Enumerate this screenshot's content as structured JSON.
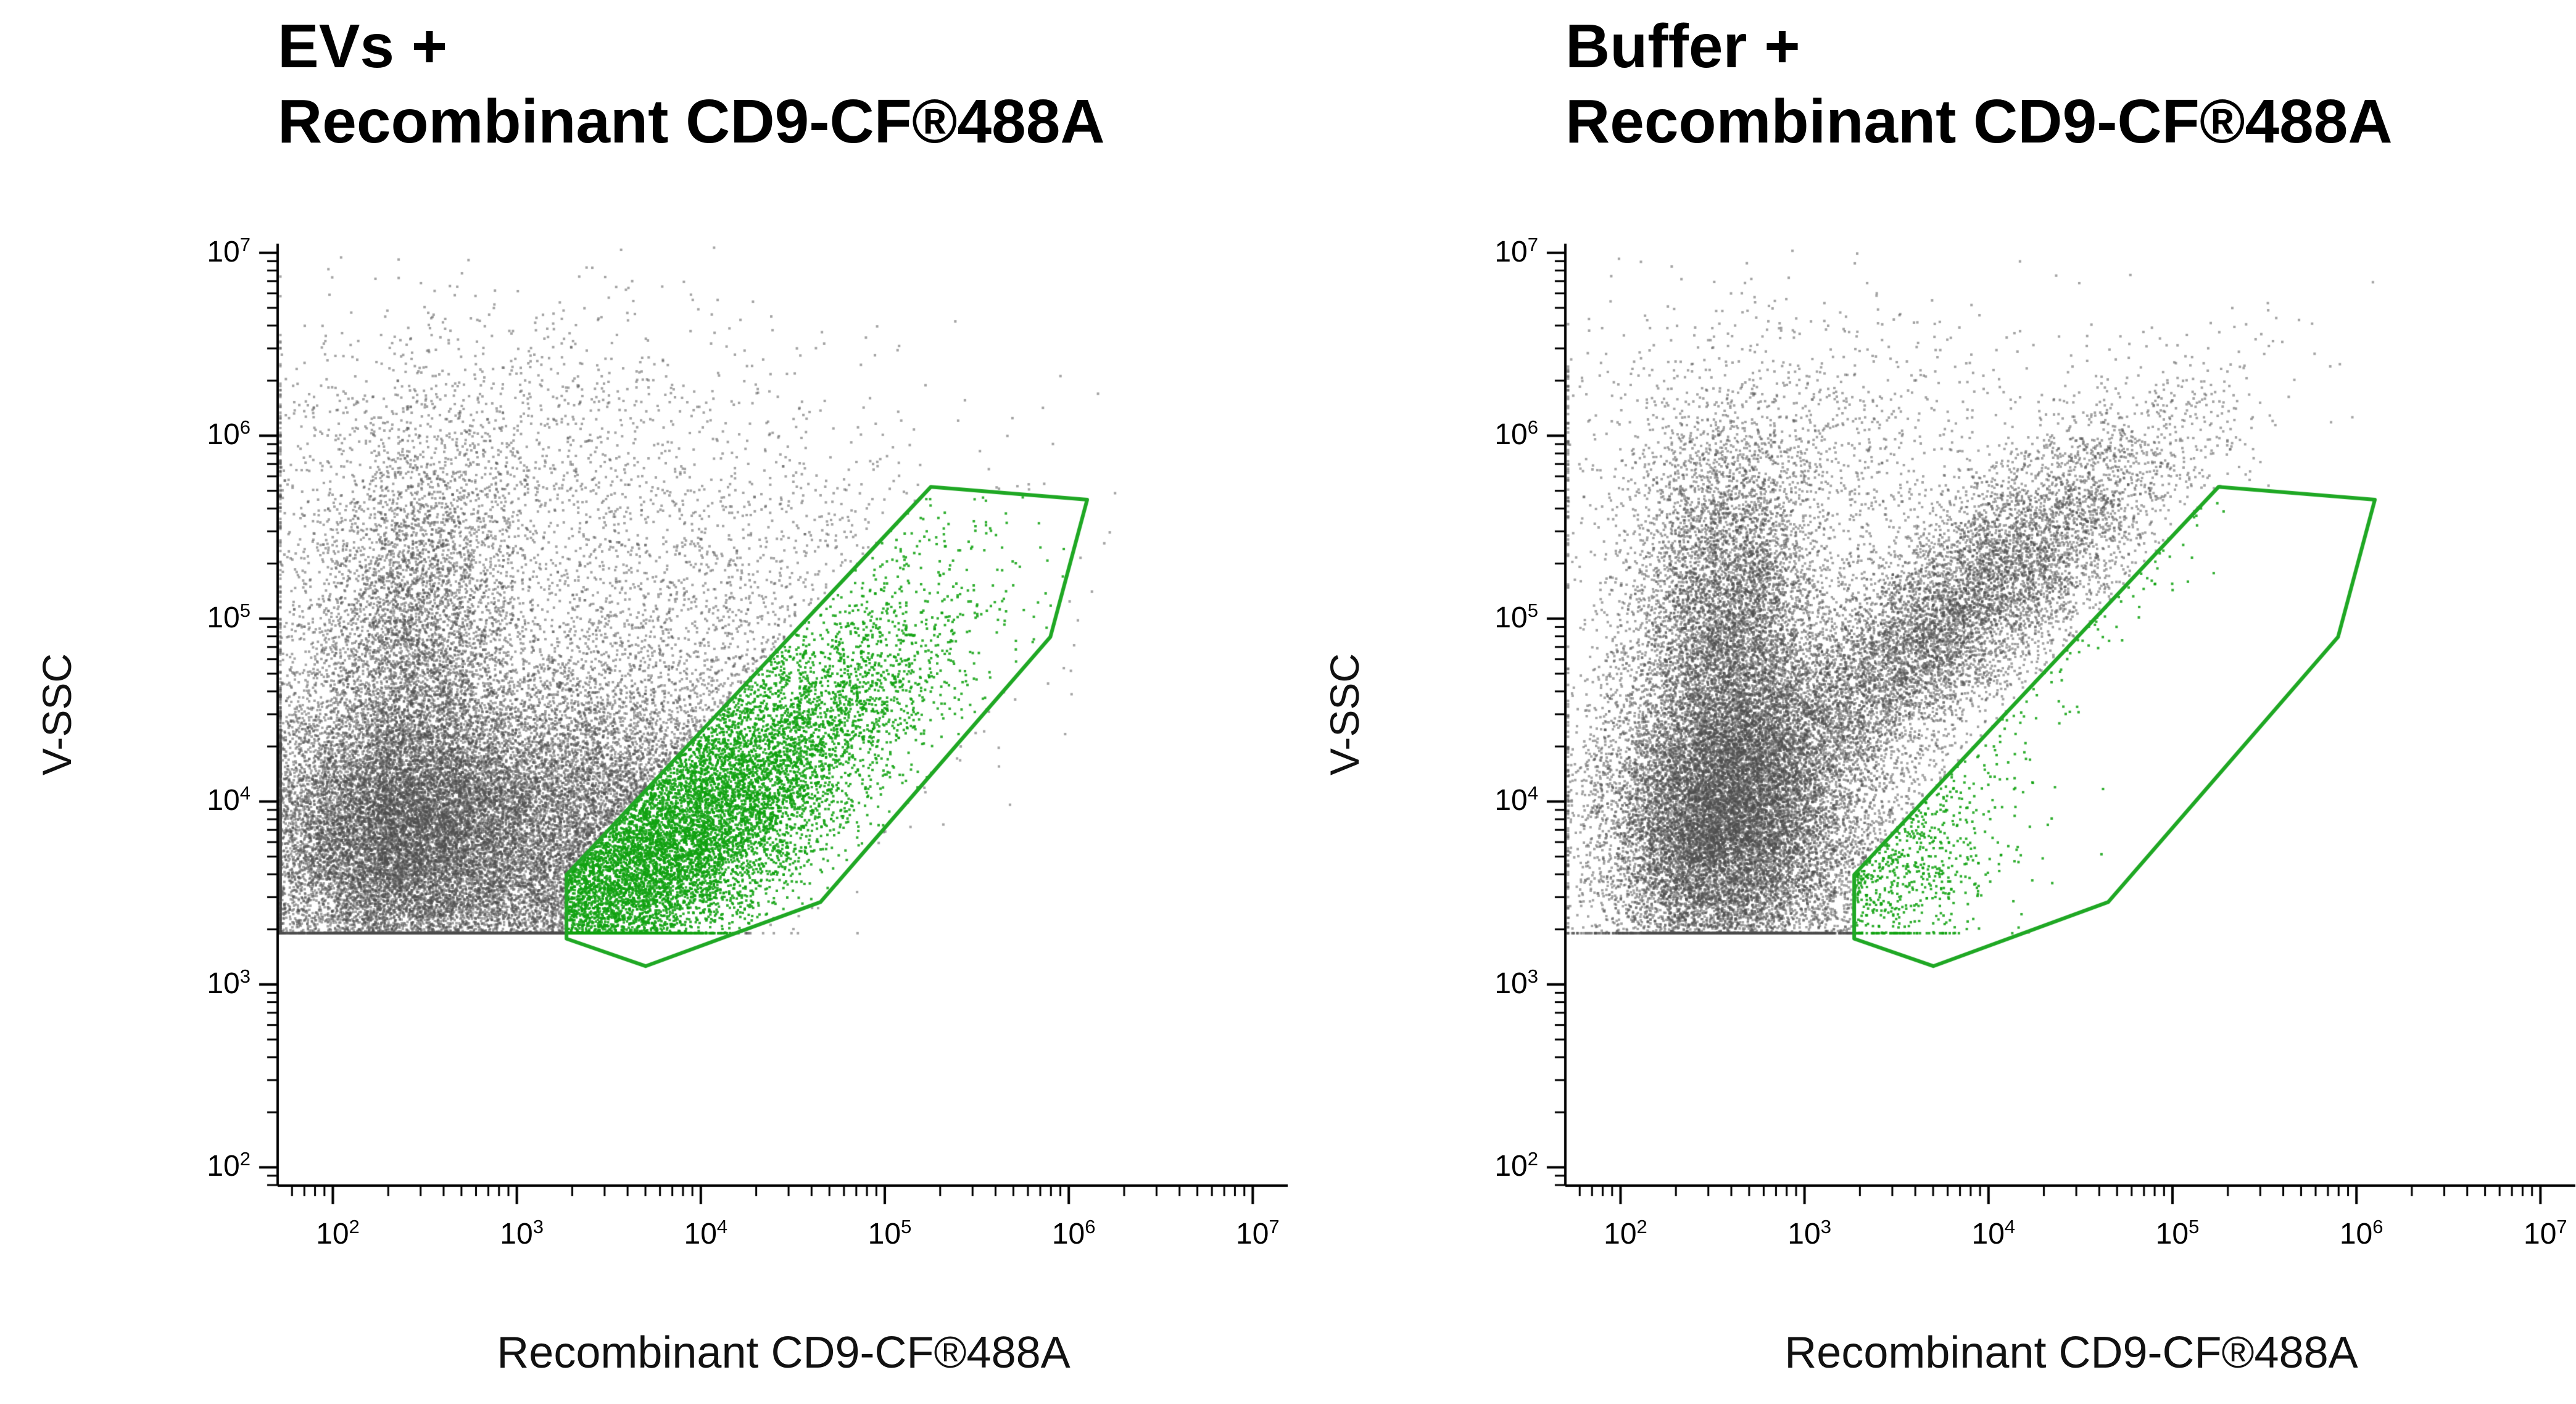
{
  "chart_data": [
    {
      "type": "scatter",
      "panel": "EVs",
      "title_line1": "EVs +",
      "title_line2": "Recombinant CD9-CF®488A",
      "xlabel": "Recombinant CD9-CF®488A",
      "ylabel": "V-SSC",
      "x_scale": "log",
      "y_scale": "log",
      "x_range": [
        100,
        10000000
      ],
      "y_range": [
        100,
        10000000
      ],
      "x_domain_log10": [
        1.7,
        7.2
      ],
      "y_domain_log10": [
        1.9,
        7.05
      ],
      "tick_exponents": [
        2,
        3,
        4,
        5,
        6,
        7
      ],
      "clamp_floor_log10": 3.28,
      "colors": {
        "ungated": "#4d4d4d",
        "gated": "#12a212"
      },
      "gate": {
        "color": "#1fa824",
        "vertices_log10": [
          [
            3.27,
            3.6
          ],
          [
            5.25,
            5.72
          ],
          [
            6.1,
            5.65
          ],
          [
            5.9,
            4.9
          ],
          [
            4.65,
            3.45
          ],
          [
            3.7,
            3.1
          ],
          [
            3.27,
            3.25
          ]
        ]
      },
      "populations": [
        {
          "seed": 11,
          "n": 15000,
          "cx": 2.35,
          "cy": 3.8,
          "sx": 0.42,
          "sy": 0.4,
          "corr": 0
        },
        {
          "seed": 12,
          "n": 5000,
          "cx": 2.45,
          "cy": 4.85,
          "sx": 0.3,
          "sy": 0.55,
          "corr": 0
        },
        {
          "seed": 13,
          "n": 7000,
          "cx": 3.25,
          "cy": 3.95,
          "sx": 0.45,
          "sy": 0.42,
          "corr": 0.2
        },
        {
          "seed": 14,
          "n": 1400,
          "cx": 2.9,
          "cy": 5.85,
          "sx": 0.75,
          "sy": 0.45,
          "corr": 0
        },
        {
          "seed": 15,
          "n": 2200,
          "cx": 3.8,
          "cy": 4.9,
          "sx": 0.85,
          "sy": 0.6,
          "corr": 0.3
        },
        {
          "seed": 16,
          "n": 9000,
          "cx": 3.95,
          "cy": 3.8,
          "sx": 0.6,
          "sy": 0.55,
          "corr": 0.82
        }
      ]
    },
    {
      "type": "scatter",
      "panel": "Buffer",
      "title_line1": "Buffer +",
      "title_line2": "Recombinant CD9-CF®488A",
      "xlabel": "Recombinant CD9-CF®488A",
      "ylabel": "V-SSC",
      "x_scale": "log",
      "y_scale": "log",
      "x_range": [
        100,
        10000000
      ],
      "y_range": [
        100,
        10000000
      ],
      "x_domain_log10": [
        1.7,
        7.2
      ],
      "y_domain_log10": [
        1.9,
        7.05
      ],
      "tick_exponents": [
        2,
        3,
        4,
        5,
        6,
        7
      ],
      "clamp_floor_log10": 3.28,
      "colors": {
        "ungated": "#4d4d4d",
        "gated": "#12a212"
      },
      "gate": {
        "color": "#1fa824",
        "vertices_log10": [
          [
            3.27,
            3.6
          ],
          [
            5.25,
            5.72
          ],
          [
            6.1,
            5.65
          ],
          [
            5.9,
            4.9
          ],
          [
            4.65,
            3.45
          ],
          [
            3.7,
            3.1
          ],
          [
            3.27,
            3.25
          ]
        ]
      },
      "populations": [
        {
          "seed": 21,
          "n": 14000,
          "cx": 2.55,
          "cy": 3.9,
          "sx": 0.33,
          "sy": 0.45,
          "corr": 0
        },
        {
          "seed": 22,
          "n": 7000,
          "cx": 2.6,
          "cy": 4.95,
          "sx": 0.27,
          "sy": 0.55,
          "corr": 0
        },
        {
          "seed": 23,
          "n": 9000,
          "cx": 3.75,
          "cy": 4.95,
          "sx": 0.62,
          "sy": 0.55,
          "corr": 0.85
        },
        {
          "seed": 24,
          "n": 1200,
          "cx": 3.0,
          "cy": 5.9,
          "sx": 0.8,
          "sy": 0.42,
          "corr": 0
        },
        {
          "seed": 25,
          "n": 300,
          "cx": 3.6,
          "cy": 3.6,
          "sx": 0.25,
          "sy": 0.3,
          "corr": 0.3
        },
        {
          "seed": 26,
          "n": 1500,
          "cx": 3.1,
          "cy": 3.7,
          "sx": 0.45,
          "sy": 0.35,
          "corr": 0.3
        }
      ]
    }
  ]
}
